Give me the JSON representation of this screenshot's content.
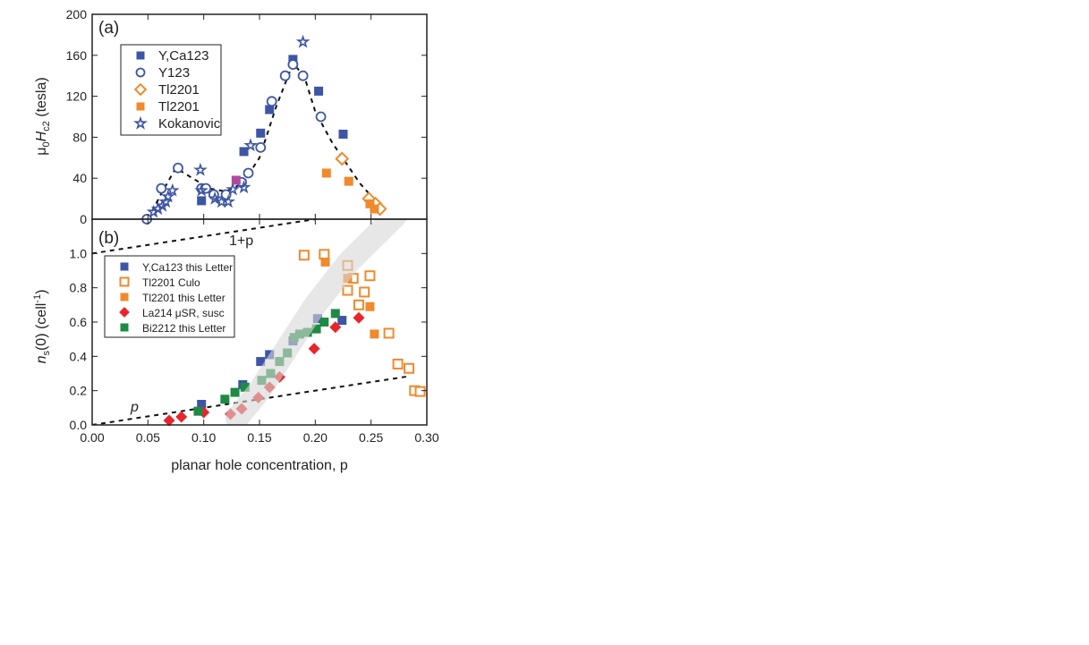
{
  "chart_data": [
    {
      "type": "scatter",
      "panel_label": "(a)",
      "ylabel_prefix": "μ",
      "ylabel_sub0": "0",
      "ylabel_H": "H",
      "ylabel_sub": "c2",
      "ylabel_unit": " (tesla)",
      "xlim": [
        0,
        0.3
      ],
      "ylim": [
        0,
        200
      ],
      "yticks": [
        "0",
        "40",
        "80",
        "120",
        "160",
        "200"
      ],
      "legend_position": "top-left",
      "series": [
        {
          "name": "Y,Ca123",
          "marker": "square",
          "filled": true,
          "color": "#3d55a5",
          "points": [
            [
              0.098,
              18
            ],
            [
              0.136,
              66
            ],
            [
              0.151,
              84
            ],
            [
              0.159,
              107
            ],
            [
              0.18,
              156
            ],
            [
              0.203,
              125
            ],
            [
              0.225,
              83
            ]
          ]
        },
        {
          "name": "Y123",
          "marker": "circle",
          "filled": false,
          "color": "#3d55a5",
          "points": [
            [
              0.049,
              0
            ],
            [
              0.062,
              30
            ],
            [
              0.077,
              50
            ],
            [
              0.098,
              30
            ],
            [
              0.102,
              30
            ],
            [
              0.109,
              24
            ],
            [
              0.12,
              24
            ],
            [
              0.134,
              36
            ],
            [
              0.14,
              45
            ],
            [
              0.151,
              70
            ],
            [
              0.161,
              115
            ],
            [
              0.173,
              140
            ],
            [
              0.18,
              151
            ],
            [
              0.189,
              140
            ],
            [
              0.205,
              100
            ]
          ]
        },
        {
          "name": "Tl2201",
          "marker": "diamond",
          "filled": false,
          "color": "#f08a2c",
          "points": [
            [
              0.224,
              59
            ],
            [
              0.248,
              20
            ],
            [
              0.254,
              15
            ],
            [
              0.258,
              10
            ]
          ]
        },
        {
          "name": "Tl2201",
          "marker": "square",
          "filled": true,
          "color": "#f08a2c",
          "points": [
            [
              0.21,
              45
            ],
            [
              0.23,
              37
            ],
            [
              0.249,
              15
            ],
            [
              0.253,
              10
            ]
          ]
        },
        {
          "name": "Kokanovic",
          "marker": "star",
          "filled": false,
          "color": "#3d55a5",
          "points": [
            [
              0.055,
              7
            ],
            [
              0.059,
              10
            ],
            [
              0.063,
              13
            ],
            [
              0.066,
              17
            ],
            [
              0.068,
              22
            ],
            [
              0.072,
              28
            ],
            [
              0.097,
              48
            ],
            [
              0.098,
              28
            ],
            [
              0.11,
              20
            ],
            [
              0.116,
              17
            ],
            [
              0.122,
              17
            ],
            [
              0.126,
              29
            ],
            [
              0.136,
              31
            ],
            [
              0.142,
              72
            ],
            [
              0.189,
              173
            ]
          ]
        }
      ],
      "extra_points": [
        {
          "color": "#b04aa0",
          "marker": "square",
          "x": 0.129,
          "y": 38
        }
      ],
      "guide_curve": [
        [
          0.05,
          0
        ],
        [
          0.062,
          25
        ],
        [
          0.075,
          50
        ],
        [
          0.09,
          40
        ],
        [
          0.105,
          30
        ],
        [
          0.12,
          27
        ],
        [
          0.135,
          35
        ],
        [
          0.15,
          60
        ],
        [
          0.165,
          110
        ],
        [
          0.18,
          152
        ],
        [
          0.19,
          140
        ],
        [
          0.2,
          105
        ],
        [
          0.215,
          75
        ],
        [
          0.24,
          35
        ],
        [
          0.262,
          8
        ]
      ]
    },
    {
      "type": "scatter",
      "panel_label": "(b)",
      "ylabel_n": "n",
      "ylabel_sub": "s",
      "ylabel_mid": "(0)  (cell",
      "ylabel_sup": "-1",
      "ylabel_end": ")",
      "xlabel": "planar hole concentration, p",
      "xlim": [
        0,
        0.3
      ],
      "ylim": [
        0,
        1.2
      ],
      "xticks": [
        "0.00",
        "0.05",
        "0.10",
        "0.15",
        "0.20",
        "0.25",
        "0.30"
      ],
      "yticks": [
        "0.0",
        "0.2",
        "0.4",
        "0.6",
        "0.8",
        "1.0"
      ],
      "legend_position": "upper-left",
      "line_labels": {
        "upper": "1+p",
        "lower": "p"
      },
      "lines": {
        "upper": [
          [
            0,
            1.0
          ],
          [
            0.2,
            1.2
          ]
        ],
        "lower": [
          [
            0,
            0
          ],
          [
            0.285,
            0.285
          ]
        ]
      },
      "band": [
        [
          0.13,
          0.04
        ],
        [
          0.15,
          0.2
        ],
        [
          0.175,
          0.45
        ],
        [
          0.2,
          0.7
        ],
        [
          0.23,
          0.95
        ],
        [
          0.272,
          1.22
        ]
      ],
      "series": [
        {
          "name": "Y,Ca123 this Letter",
          "marker": "square",
          "filled": true,
          "color": "#3d55a5",
          "points": [
            [
              0.098,
              0.12
            ],
            [
              0.135,
              0.235
            ],
            [
              0.151,
              0.37
            ],
            [
              0.159,
              0.41
            ],
            [
              0.18,
              0.49
            ],
            [
              0.202,
              0.62
            ],
            [
              0.224,
              0.61
            ]
          ]
        },
        {
          "name": "Tl2201 Culo",
          "marker": "square",
          "filled": false,
          "color": "#f08a2c",
          "points": [
            [
              0.19,
              0.99
            ],
            [
              0.208,
              0.995
            ],
            [
              0.229,
              0.93
            ],
            [
              0.234,
              0.855
            ],
            [
              0.229,
              0.785
            ],
            [
              0.249,
              0.87
            ],
            [
              0.244,
              0.775
            ],
            [
              0.239,
              0.7
            ],
            [
              0.266,
              0.535
            ],
            [
              0.274,
              0.355
            ],
            [
              0.284,
              0.33
            ],
            [
              0.289,
              0.2
            ],
            [
              0.294,
              0.195
            ]
          ]
        },
        {
          "name": "Tl2201 this Letter",
          "marker": "square",
          "filled": true,
          "color": "#f08a2c",
          "points": [
            [
              0.209,
              0.95
            ],
            [
              0.229,
              0.855
            ],
            [
              0.249,
              0.69
            ],
            [
              0.253,
              0.53
            ]
          ]
        },
        {
          "name": "La214 μSR, susc",
          "marker": "diamond",
          "filled": true,
          "color": "#e8262a",
          "points": [
            [
              0.069,
              0.026
            ],
            [
              0.08,
              0.047
            ],
            [
              0.1,
              0.073
            ],
            [
              0.124,
              0.063
            ],
            [
              0.134,
              0.094
            ],
            [
              0.149,
              0.16
            ],
            [
              0.159,
              0.22
            ],
            [
              0.168,
              0.28
            ],
            [
              0.199,
              0.445
            ],
            [
              0.218,
              0.57
            ],
            [
              0.239,
              0.625
            ]
          ]
        },
        {
          "name": "Bi2212 this Letter",
          "marker": "square",
          "filled": true,
          "color": "#1e8a44",
          "points": [
            [
              0.095,
              0.08
            ],
            [
              0.119,
              0.15
            ],
            [
              0.128,
              0.19
            ],
            [
              0.137,
              0.22
            ],
            [
              0.152,
              0.26
            ],
            [
              0.16,
              0.3
            ],
            [
              0.168,
              0.37
            ],
            [
              0.175,
              0.42
            ],
            [
              0.181,
              0.51
            ],
            [
              0.186,
              0.53
            ],
            [
              0.193,
              0.54
            ],
            [
              0.201,
              0.56
            ],
            [
              0.208,
              0.6
            ],
            [
              0.218,
              0.65
            ]
          ]
        }
      ]
    }
  ]
}
